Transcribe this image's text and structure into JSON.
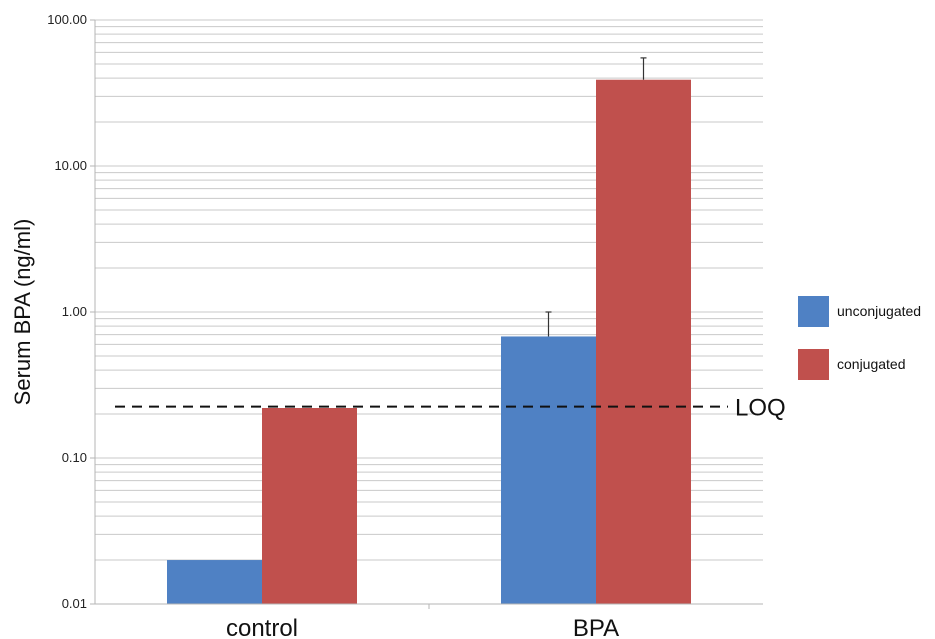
{
  "chart_data": {
    "type": "bar",
    "categories": [
      "control",
      "BPA"
    ],
    "series": [
      {
        "name": "unconjugated",
        "values": [
          0.02,
          0.68
        ],
        "error_upper": [
          null,
          1.0
        ],
        "color": "#4f81c4"
      },
      {
        "name": "conjugated",
        "values": [
          0.22,
          39.0
        ],
        "error_upper": [
          null,
          55.0
        ],
        "color": "#c0504d"
      }
    ],
    "ylabel": "Serum BPA (ng/ml)",
    "y_scale": "log",
    "ylim": [
      0.01,
      100
    ],
    "y_ticks": [
      {
        "value": 0.01,
        "label": "0.01"
      },
      {
        "value": 0.1,
        "label": "0.10"
      },
      {
        "value": 1,
        "label": "1.00"
      },
      {
        "value": 10,
        "label": "10.00"
      },
      {
        "value": 100,
        "label": "100.00"
      }
    ],
    "reference_line": {
      "label": "LOQ",
      "value": 0.225,
      "style": "dashed"
    },
    "grid": true,
    "legend_position": "right"
  }
}
